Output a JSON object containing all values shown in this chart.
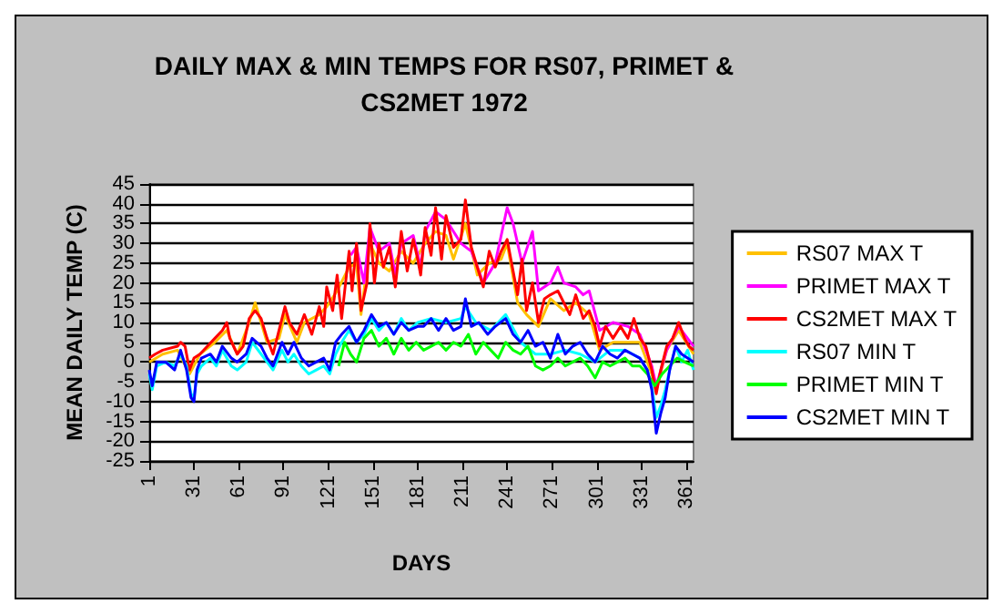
{
  "chart_data": {
    "type": "line",
    "title": "DAILY MAX & MIN TEMPS FOR RS07, PRIMET &\nCS2MET 1972",
    "xlabel": "DAYS",
    "ylabel": "MEAN DAILY TEMP (C)",
    "xlim": [
      1,
      366
    ],
    "xticks": [
      1,
      31,
      61,
      91,
      121,
      151,
      181,
      211,
      241,
      271,
      301,
      331,
      361
    ],
    "ylim": [
      -25,
      45
    ],
    "yticks": [
      -25,
      -20,
      -15,
      -10,
      -5,
      0,
      5,
      10,
      15,
      20,
      25,
      30,
      35,
      40,
      45
    ],
    "grid": "y",
    "legend": "right",
    "marker": "none",
    "line_style": "solid",
    "series": [
      {
        "name": "RS07 MAX T",
        "color": "#ffc000",
        "x": [
          1,
          10,
          20,
          28,
          35,
          45,
          53,
          60,
          68,
          72,
          80,
          88,
          92,
          100,
          105,
          115,
          120,
          127,
          135,
          140,
          143,
          149,
          155,
          162,
          170,
          178,
          186,
          193,
          200,
          205,
          213,
          221,
          229,
          237,
          241,
          248,
          254,
          262,
          270,
          279,
          287,
          296,
          303,
          312,
          322,
          330,
          338,
          341,
          348,
          356,
          366
        ],
        "values": [
          0,
          2,
          3,
          -3,
          2,
          5,
          8,
          2,
          10,
          15,
          5,
          6,
          12,
          5,
          10,
          12,
          14,
          18,
          24,
          25,
          12,
          30,
          25,
          23,
          28,
          25,
          30,
          33,
          32,
          26,
          35,
          22,
          25,
          26,
          30,
          15,
          12,
          9,
          16,
          13,
          15,
          12,
          3,
          5,
          5,
          5,
          -3,
          -7,
          3,
          8,
          2
        ]
      },
      {
        "name": "PRIMET MAX T",
        "color": "#ff00ff",
        "x": [
          136,
          140,
          145,
          149,
          155,
          162,
          166,
          170,
          178,
          183,
          186,
          193,
          200,
          210,
          217,
          225,
          233,
          241,
          245,
          251,
          258,
          262,
          270,
          275,
          279,
          287,
          292,
          296,
          303,
          312,
          322,
          330,
          338,
          341,
          348,
          356,
          366
        ],
        "values": [
          27,
          29,
          20,
          34,
          28,
          30,
          22,
          30,
          32,
          24,
          33,
          38,
          36,
          30,
          28,
          20,
          25,
          39,
          35,
          25,
          33,
          18,
          20,
          24,
          20,
          19,
          17,
          18,
          8,
          10,
          9,
          7,
          -1,
          -6,
          3,
          9,
          4
        ]
      },
      {
        "name": "CS2MET MAX T",
        "color": "#ff0000",
        "x": [
          1,
          5,
          10,
          20,
          22,
          25,
          28,
          31,
          35,
          40,
          45,
          50,
          53,
          55,
          60,
          64,
          68,
          72,
          76,
          80,
          84,
          88,
          92,
          95,
          100,
          105,
          110,
          115,
          118,
          120,
          124,
          127,
          130,
          135,
          137,
          140,
          143,
          147,
          149,
          152,
          155,
          158,
          162,
          166,
          170,
          174,
          178,
          181,
          183,
          186,
          190,
          193,
          197,
          200,
          205,
          210,
          213,
          217,
          221,
          225,
          229,
          233,
          237,
          241,
          245,
          248,
          251,
          254,
          258,
          262,
          266,
          270,
          275,
          279,
          283,
          287,
          292,
          296,
          300,
          303,
          307,
          312,
          317,
          322,
          326,
          330,
          334,
          338,
          341,
          344,
          348,
          352,
          356,
          360,
          363,
          366
        ],
        "values": [
          1,
          2,
          3,
          4,
          5,
          4,
          -2,
          1,
          2,
          4,
          6,
          8,
          10,
          6,
          2,
          4,
          11,
          13,
          11,
          6,
          2,
          8,
          14,
          10,
          7,
          12,
          7,
          14,
          9,
          19,
          13,
          22,
          11,
          28,
          18,
          30,
          13,
          20,
          35,
          20,
          30,
          24,
          29,
          19,
          33,
          23,
          31,
          26,
          22,
          34,
          27,
          39,
          26,
          37,
          29,
          31,
          41,
          29,
          24,
          19,
          28,
          24,
          28,
          31,
          23,
          17,
          26,
          13,
          20,
          10,
          16,
          17,
          18,
          15,
          12,
          17,
          11,
          13,
          9,
          4,
          9,
          6,
          9,
          6,
          11,
          6,
          4,
          -2,
          -8,
          -2,
          4,
          6,
          10,
          6,
          4,
          3
        ]
      },
      {
        "name": "RS07 MIN T",
        "color": "#00ffff",
        "x": [
          1,
          3,
          6,
          12,
          18,
          22,
          26,
          29,
          31,
          33,
          36,
          42,
          46,
          50,
          56,
          60,
          66,
          70,
          76,
          80,
          84,
          90,
          94,
          98,
          103,
          108,
          113,
          118,
          122,
          126,
          130,
          135,
          140,
          145,
          150,
          155,
          160,
          165,
          170,
          175,
          181,
          190,
          200,
          210,
          213,
          220,
          230,
          240,
          250,
          260,
          270,
          280,
          290,
          300,
          310,
          320,
          330,
          335,
          338,
          341,
          344,
          347,
          350,
          354,
          358,
          362,
          366
        ],
        "values": [
          -3,
          -7,
          -1,
          0,
          -1,
          2,
          -1,
          -8,
          -9,
          -3,
          -1,
          1,
          -1,
          3,
          -1,
          -2,
          0,
          5,
          2,
          0,
          -2,
          3,
          0,
          2,
          -1,
          -3,
          -2,
          -1,
          -3,
          2,
          5,
          8,
          5,
          7,
          11,
          8,
          10,
          7,
          11,
          8,
          10,
          11,
          10,
          11,
          14,
          10,
          8,
          12,
          5,
          2,
          2,
          3,
          2,
          0,
          3,
          3,
          1,
          -2,
          -6,
          -14,
          -11,
          -7,
          -2,
          4,
          0,
          3,
          -2
        ]
      },
      {
        "name": "PRIMET MIN T",
        "color": "#00ff00",
        "x": [
          128,
          132,
          136,
          140,
          145,
          150,
          155,
          160,
          165,
          170,
          175,
          180,
          185,
          190,
          195,
          200,
          205,
          210,
          215,
          220,
          225,
          230,
          235,
          240,
          245,
          250,
          255,
          260,
          265,
          270,
          275,
          280,
          285,
          290,
          295,
          300,
          305,
          310,
          315,
          320,
          325,
          330,
          335,
          340,
          345,
          350,
          355,
          360,
          366
        ],
        "values": [
          -1,
          5,
          2,
          0,
          6,
          8,
          4,
          6,
          2,
          6,
          3,
          5,
          3,
          4,
          5,
          3,
          5,
          4,
          7,
          2,
          5,
          3,
          1,
          5,
          3,
          2,
          4,
          -1,
          -2,
          -1,
          1,
          -1,
          0,
          1,
          -1,
          -4,
          0,
          -1,
          0,
          1,
          -1,
          -1,
          -3,
          -6,
          -3,
          -1,
          1,
          0,
          -1
        ]
      },
      {
        "name": "CS2MET MIN T",
        "color": "#0000ff",
        "x": [
          1,
          3,
          6,
          12,
          18,
          22,
          26,
          29,
          31,
          33,
          36,
          42,
          46,
          50,
          56,
          60,
          66,
          70,
          76,
          80,
          84,
          90,
          94,
          98,
          103,
          108,
          113,
          118,
          122,
          126,
          130,
          135,
          140,
          145,
          150,
          155,
          160,
          165,
          170,
          175,
          181,
          185,
          190,
          195,
          200,
          205,
          210,
          213,
          217,
          222,
          228,
          233,
          240,
          245,
          250,
          255,
          260,
          265,
          270,
          275,
          280,
          285,
          290,
          295,
          300,
          305,
          310,
          315,
          320,
          325,
          330,
          335,
          338,
          341,
          344,
          347,
          350,
          354,
          358,
          362,
          366
        ],
        "values": [
          -2,
          -6,
          0,
          0,
          -2,
          3,
          -2,
          -9,
          -10,
          -2,
          1,
          2,
          0,
          4,
          1,
          0,
          2,
          6,
          4,
          1,
          -1,
          5,
          2,
          5,
          1,
          -1,
          0,
          1,
          -2,
          5,
          7,
          9,
          5,
          8,
          12,
          9,
          10,
          7,
          10,
          8,
          9,
          9,
          11,
          8,
          11,
          8,
          9,
          16,
          9,
          10,
          7,
          9,
          11,
          7,
          5,
          8,
          4,
          5,
          1,
          7,
          2,
          4,
          5,
          2,
          0,
          4,
          2,
          1,
          3,
          2,
          1,
          -2,
          -7,
          -18,
          -13,
          -9,
          -2,
          4,
          2,
          1,
          0
        ]
      }
    ]
  }
}
